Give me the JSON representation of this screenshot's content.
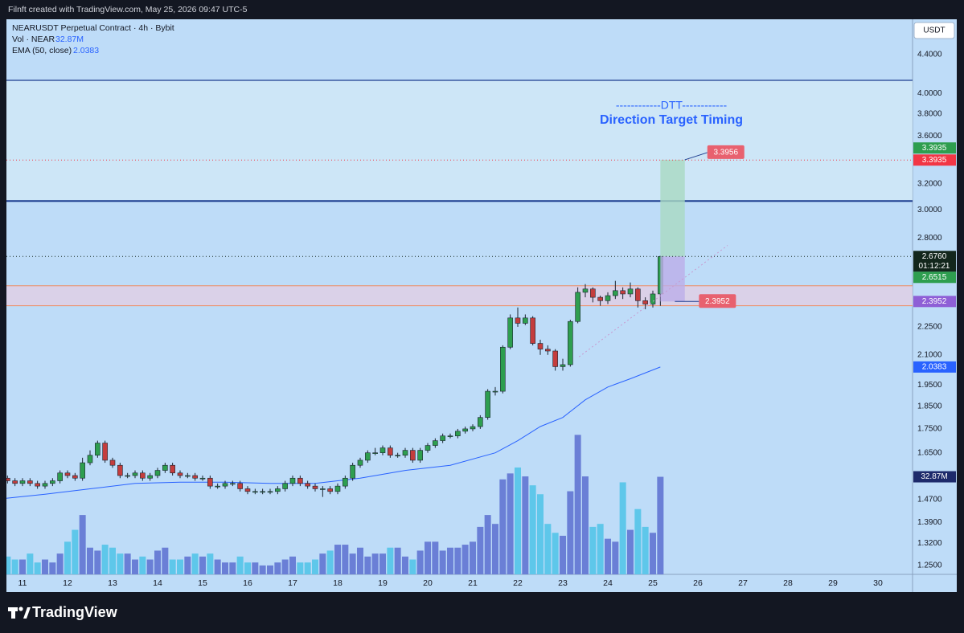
{
  "header": "Filnft created with TradingView.com, May 25, 2026 09:47 UTC-5",
  "footer": "TradingView",
  "chart_data": {
    "type": "candlestick",
    "symbol": "NEARUSDT Perpetual Contract · 4h · Bybit",
    "currency": "USDT",
    "log_scale": true,
    "background": "#bedcf8",
    "up_color": "#2e9e4f",
    "down_color": "#c43d3d",
    "xlim": [
      10.643,
      30.768
    ],
    "xticks": [
      11,
      12,
      13,
      14,
      15,
      16,
      17,
      18,
      19,
      20,
      21,
      22,
      23,
      24,
      25,
      26,
      27,
      28,
      29,
      30
    ],
    "ylim": [
      1.223,
      4.8
    ],
    "yticks": [
      {
        "value": 4.4,
        "label": "4.4000"
      },
      {
        "value": 4.0,
        "label": "4.0000"
      },
      {
        "value": 3.8,
        "label": "3.8000"
      },
      {
        "value": 3.6,
        "label": "3.6000"
      },
      {
        "value": 3.2,
        "label": "3.2000"
      },
      {
        "value": 3.0,
        "label": "3.0000"
      },
      {
        "value": 2.8,
        "label": "2.8000"
      },
      {
        "value": 2.25,
        "label": "2.2500"
      },
      {
        "value": 2.1,
        "label": "2.1000"
      },
      {
        "value": 1.95,
        "label": "1.9500"
      },
      {
        "value": 1.85,
        "label": "1.8500"
      },
      {
        "value": 1.75,
        "label": "1.7500"
      },
      {
        "value": 1.65,
        "label": "1.6500"
      },
      {
        "value": 1.47,
        "label": "1.4700"
      },
      {
        "value": 1.39,
        "label": "1.3900"
      },
      {
        "value": 1.32,
        "label": "1.3200"
      },
      {
        "value": 1.25,
        "label": "1.2500"
      }
    ],
    "x": [
      10.667,
      10.833,
      11,
      11.167,
      11.333,
      11.5,
      11.667,
      11.833,
      12,
      12.167,
      12.333,
      12.5,
      12.667,
      12.833,
      13,
      13.167,
      13.333,
      13.5,
      13.667,
      13.833,
      14,
      14.167,
      14.333,
      14.5,
      14.667,
      14.833,
      15,
      15.167,
      15.333,
      15.5,
      15.667,
      15.833,
      16,
      16.167,
      16.333,
      16.5,
      16.667,
      16.833,
      17,
      17.167,
      17.333,
      17.5,
      17.667,
      17.833,
      18,
      18.167,
      18.333,
      18.5,
      18.667,
      18.833,
      19,
      19.167,
      19.333,
      19.5,
      19.667,
      19.833,
      20,
      20.167,
      20.333,
      20.5,
      20.667,
      20.833,
      21,
      21.167,
      21.333,
      21.5,
      21.667,
      21.833,
      22,
      22.167,
      22.333,
      22.5,
      22.667,
      22.833,
      23,
      23.167,
      23.333,
      23.5,
      23.667,
      23.833,
      24,
      24.167,
      24.333,
      24.5,
      24.667,
      24.833,
      25,
      25.167
    ],
    "open": [
      1.55,
      1.54,
      1.53,
      1.54,
      1.53,
      1.52,
      1.53,
      1.54,
      1.57,
      1.56,
      1.55,
      1.61,
      1.64,
      1.69,
      1.62,
      1.6,
      1.56,
      1.56,
      1.57,
      1.55,
      1.56,
      1.58,
      1.6,
      1.57,
      1.56,
      1.56,
      1.55,
      1.55,
      1.52,
      1.52,
      1.53,
      1.53,
      1.51,
      1.5,
      1.5,
      1.5,
      1.5,
      1.51,
      1.53,
      1.55,
      1.53,
      1.52,
      1.51,
      1.51,
      1.5,
      1.52,
      1.55,
      1.6,
      1.62,
      1.65,
      1.65,
      1.67,
      1.64,
      1.64,
      1.66,
      1.62,
      1.66,
      1.68,
      1.7,
      1.72,
      1.72,
      1.74,
      1.75,
      1.76,
      1.8,
      1.92,
      1.92,
      2.14,
      2.3,
      2.27,
      2.3,
      2.16,
      2.13,
      2.12,
      2.04,
      2.05,
      2.28,
      2.45,
      2.47,
      2.42,
      2.4,
      2.43,
      2.46,
      2.44,
      2.47,
      2.4,
      2.38,
      2.44
    ],
    "high": [
      1.56,
      1.55,
      1.55,
      1.55,
      1.54,
      1.54,
      1.55,
      1.58,
      1.58,
      1.57,
      1.63,
      1.66,
      1.7,
      1.7,
      1.63,
      1.61,
      1.57,
      1.58,
      1.58,
      1.57,
      1.59,
      1.61,
      1.61,
      1.58,
      1.57,
      1.57,
      1.56,
      1.56,
      1.53,
      1.54,
      1.54,
      1.54,
      1.52,
      1.51,
      1.51,
      1.51,
      1.52,
      1.54,
      1.56,
      1.56,
      1.54,
      1.53,
      1.52,
      1.52,
      1.53,
      1.56,
      1.61,
      1.63,
      1.66,
      1.67,
      1.68,
      1.68,
      1.65,
      1.67,
      1.67,
      1.67,
      1.69,
      1.71,
      1.73,
      1.73,
      1.75,
      1.76,
      1.77,
      1.81,
      1.93,
      1.94,
      2.15,
      2.32,
      2.36,
      2.32,
      2.31,
      2.18,
      2.15,
      2.13,
      2.08,
      2.29,
      2.48,
      2.5,
      2.48,
      2.43,
      2.45,
      2.52,
      2.48,
      2.51,
      2.48,
      2.42,
      2.46,
      2.68
    ],
    "low": [
      1.53,
      1.52,
      1.52,
      1.52,
      1.51,
      1.51,
      1.52,
      1.53,
      1.55,
      1.54,
      1.54,
      1.6,
      1.63,
      1.61,
      1.59,
      1.55,
      1.55,
      1.55,
      1.54,
      1.54,
      1.55,
      1.57,
      1.56,
      1.55,
      1.55,
      1.54,
      1.54,
      1.51,
      1.51,
      1.51,
      1.52,
      1.5,
      1.49,
      1.49,
      1.49,
      1.49,
      1.49,
      1.5,
      1.52,
      1.52,
      1.51,
      1.5,
      1.48,
      1.49,
      1.49,
      1.51,
      1.54,
      1.59,
      1.61,
      1.64,
      1.64,
      1.63,
      1.63,
      1.63,
      1.61,
      1.61,
      1.65,
      1.67,
      1.69,
      1.71,
      1.71,
      1.73,
      1.74,
      1.75,
      1.79,
      1.9,
      1.91,
      2.13,
      2.25,
      2.26,
      2.15,
      2.1,
      2.1,
      2.02,
      2.02,
      2.04,
      2.27,
      2.42,
      2.39,
      2.37,
      2.38,
      2.41,
      2.41,
      2.42,
      2.36,
      2.35,
      2.36,
      2.37
    ],
    "close": [
      1.54,
      1.53,
      1.54,
      1.53,
      1.52,
      1.53,
      1.54,
      1.57,
      1.56,
      1.55,
      1.61,
      1.64,
      1.69,
      1.62,
      1.6,
      1.56,
      1.56,
      1.57,
      1.55,
      1.56,
      1.58,
      1.6,
      1.57,
      1.56,
      1.56,
      1.55,
      1.55,
      1.52,
      1.52,
      1.53,
      1.53,
      1.51,
      1.5,
      1.5,
      1.5,
      1.5,
      1.51,
      1.53,
      1.55,
      1.53,
      1.52,
      1.51,
      1.51,
      1.5,
      1.52,
      1.55,
      1.6,
      1.62,
      1.65,
      1.65,
      1.67,
      1.64,
      1.64,
      1.66,
      1.62,
      1.66,
      1.68,
      1.7,
      1.72,
      1.72,
      1.74,
      1.75,
      1.76,
      1.8,
      1.92,
      1.92,
      2.14,
      2.3,
      2.27,
      2.3,
      2.16,
      2.13,
      2.12,
      2.04,
      2.05,
      2.28,
      2.45,
      2.47,
      2.42,
      2.4,
      2.43,
      2.46,
      2.44,
      2.47,
      2.4,
      2.38,
      2.44,
      2.676
    ],
    "volume": {
      "name": "Vol · NEAR",
      "up_color": "#6a7fd6",
      "down_color": "#5ec7ea",
      "ylim": [
        0,
        187
      ],
      "label_color": "#1d2a6b",
      "last_label": "32.87M",
      "values": [
        6,
        5,
        5,
        7,
        4,
        5,
        4,
        7,
        11,
        15,
        20,
        9,
        8,
        10,
        9,
        7,
        7,
        5,
        6,
        5,
        8,
        9,
        5,
        5,
        6,
        7,
        6,
        7,
        5,
        4,
        4,
        6,
        4,
        4,
        3,
        3,
        4,
        5,
        6,
        4,
        4,
        5,
        7,
        8,
        10,
        10,
        7,
        9,
        6,
        7,
        7,
        9,
        9,
        6,
        5,
        8,
        11,
        11,
        8,
        9,
        9,
        10,
        11,
        16,
        20,
        17,
        32,
        34,
        36,
        33,
        30,
        27,
        17,
        14,
        13,
        28,
        47,
        33,
        16,
        17,
        12,
        11,
        31,
        15,
        22,
        16,
        14,
        32.87
      ]
    },
    "ema": {
      "name": "EMA (50, close)",
      "color": "#2962ff",
      "x": [
        10.643,
        11.5,
        12.5,
        13.5,
        14.5,
        15.5,
        16.5,
        17.5,
        18.5,
        19.5,
        20.5,
        21.5,
        22.0,
        22.5,
        23.0,
        23.5,
        24.0,
        24.5,
        25.167
      ],
      "values": [
        1.475,
        1.49,
        1.51,
        1.53,
        1.535,
        1.535,
        1.53,
        1.53,
        1.55,
        1.58,
        1.6,
        1.65,
        1.7,
        1.76,
        1.8,
        1.88,
        1.94,
        1.98,
        2.0383
      ]
    },
    "zones": [
      {
        "from": 3.068,
        "to": 4.13,
        "color": "#d2e9f7"
      },
      {
        "from": 2.37,
        "to": 2.49,
        "color": "#e3cde3"
      }
    ],
    "levels": [
      {
        "value": 4.13,
        "color": "#1d3d8f",
        "width": 1.2
      },
      {
        "value": 3.068,
        "color": "#1d3d8f",
        "width": 2
      },
      {
        "value": 2.49,
        "color": "#ef8a5f",
        "width": 1
      },
      {
        "value": 2.37,
        "color": "#ef8a5f",
        "width": 1
      }
    ],
    "position": {
      "x": [
        25.167,
        25.71
      ],
      "entry": 2.676,
      "target": 3.3956,
      "stop": 2.3952,
      "target_color": "#a9dac2",
      "stop_color": "#bcaee9",
      "target_label_color": "#e8616f",
      "stop_label_color": "#e8616f"
    },
    "trendline": {
      "x": [
        23.36,
        26.66
      ],
      "values": [
        2.09,
        2.75
      ],
      "color": "#c79bd0"
    },
    "axis_labels": [
      {
        "value": 3.3935,
        "color": "#f23645",
        "dotted": true
      },
      {
        "value": 3.3935,
        "color": "#2e9e4f"
      },
      {
        "value": 2.676,
        "label": "2.6760",
        "color": "#13261c",
        "countdown": "01:12:21",
        "dotted": true
      },
      {
        "value": 2.6515,
        "color": "#2e9e4f"
      },
      {
        "value": 2.3952,
        "color": "#8e5fd6"
      }
    ],
    "annotations": [
      "------------DTT------------",
      "Direction Target Timing"
    ]
  }
}
